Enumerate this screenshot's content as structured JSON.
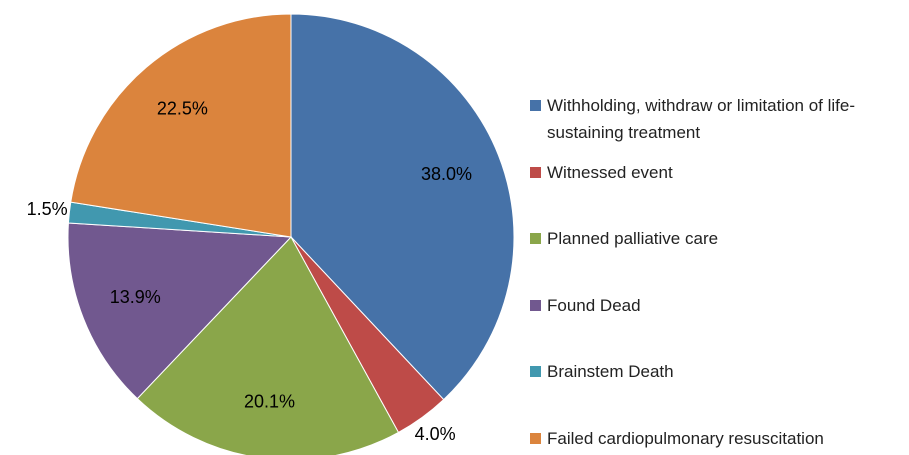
{
  "chart_data": {
    "type": "pie",
    "categories": [
      "Withholding, withdraw or limitation of life-sustaining treatment",
      "Witnessed event",
      "Planned palliative care",
      "Found Dead",
      "Brainstem Death",
      "Failed cardiopulmonary resuscitation"
    ],
    "values": [
      38,
      4,
      20.1,
      13.9,
      1.5,
      22.5
    ],
    "value_labels": [
      "38.0%",
      "4.0%",
      "20.1%",
      "13.9%",
      "1.5%",
      "22.5%"
    ],
    "colors": [
      "#4672a8",
      "#be4b48",
      "#8aa64a",
      "#71588f",
      "#4198af",
      "#db843d"
    ],
    "legend": "right"
  }
}
